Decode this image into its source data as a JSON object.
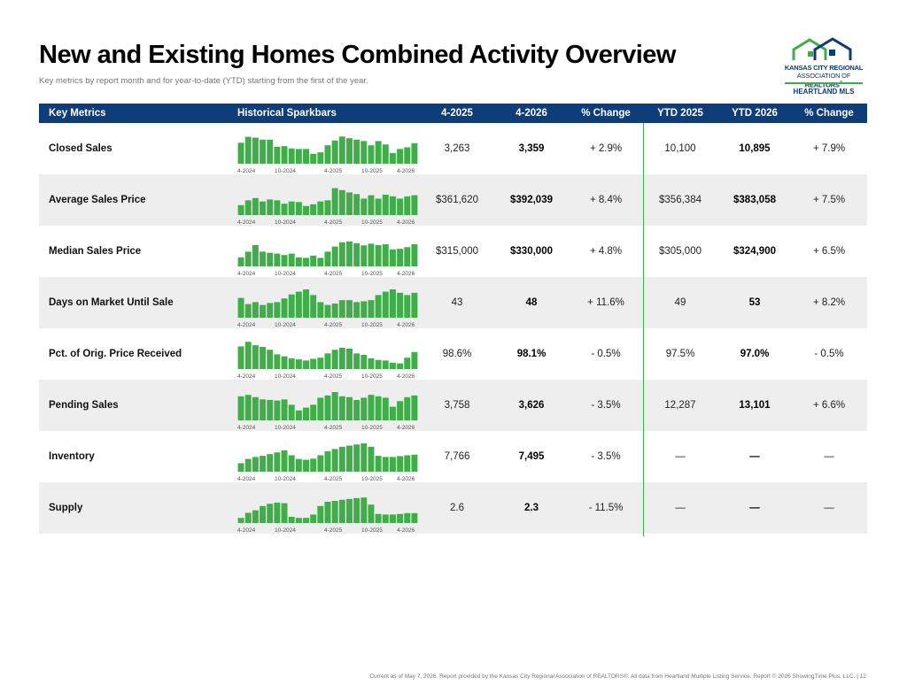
{
  "header": {
    "title": "New and Existing Homes Combined Activity Overview",
    "subtitle": "Key metrics by report month and for year-to-date (YTD) starting from the first of the year."
  },
  "logo": {
    "line1": "KANSAS CITY REGIONAL",
    "line2a": "ASSOCIATION OF ",
    "line2b": "REALTORS",
    "line3": "HEARTLAND MLS"
  },
  "colors": {
    "header_bg": "#0f3d7a",
    "bar_green": "#3fae49",
    "row_shade": "#eeeeee"
  },
  "columns": [
    "Key Metrics",
    "Historical Sparkbars",
    "4-2025",
    "4-2026",
    "% Change",
    "YTD 2025",
    "YTD 2026",
    "% Change"
  ],
  "spark_ticks": [
    "4-2024",
    "10-2024",
    "4-2025",
    "10-2025",
    "4-2026"
  ],
  "rows": [
    {
      "label": "Closed Sales",
      "m1": "3,263",
      "m2": "3,359",
      "chg": "+ 2.9%",
      "y1": "10,100",
      "y2": "10,895",
      "ychg": "+ 7.9%",
      "spark": [
        0.74,
        0.95,
        0.92,
        0.85,
        0.85,
        0.6,
        0.62,
        0.54,
        0.52,
        0.52,
        0.35,
        0.4,
        0.65,
        0.82,
        0.96,
        0.9,
        0.85,
        0.8,
        0.65,
        0.8,
        0.68,
        0.38,
        0.52,
        0.58,
        0.72
      ]
    },
    {
      "label": "Average Sales Price",
      "m1": "$361,620",
      "m2": "$392,039",
      "chg": "+ 8.4%",
      "y1": "$356,384",
      "y2": "$383,058",
      "ychg": "+ 7.5%",
      "spark": [
        0.35,
        0.52,
        0.6,
        0.48,
        0.55,
        0.52,
        0.4,
        0.48,
        0.46,
        0.32,
        0.38,
        0.48,
        0.52,
        0.95,
        0.88,
        0.8,
        0.74,
        0.58,
        0.7,
        0.58,
        0.72,
        0.66,
        0.58,
        0.66,
        0.7
      ]
    },
    {
      "label": "Median Sales Price",
      "m1": "$315,000",
      "m2": "$330,000",
      "chg": "+ 4.8%",
      "y1": "$305,000",
      "y2": "$324,900",
      "ychg": "+ 6.5%",
      "spark": [
        0.32,
        0.52,
        0.75,
        0.52,
        0.48,
        0.45,
        0.4,
        0.45,
        0.32,
        0.3,
        0.38,
        0.3,
        0.52,
        0.7,
        0.85,
        0.88,
        0.82,
        0.74,
        0.8,
        0.75,
        0.78,
        0.6,
        0.62,
        0.68,
        0.78
      ]
    },
    {
      "label": "Days on Market Until Sale",
      "m1": "43",
      "m2": "48",
      "chg": "+ 11.6%",
      "y1": "49",
      "y2": "53",
      "ychg": "+ 8.2%",
      "spark": [
        0.7,
        0.48,
        0.55,
        0.45,
        0.52,
        0.55,
        0.68,
        0.82,
        0.92,
        1.0,
        0.8,
        0.55,
        0.45,
        0.5,
        0.62,
        0.62,
        0.55,
        0.58,
        0.62,
        0.8,
        0.92,
        1.0,
        0.88,
        0.8,
        0.88
      ]
    },
    {
      "label": "Pct. of Orig. Price Received",
      "m1": "98.6%",
      "m2": "98.1%",
      "chg": "- 0.5%",
      "y1": "97.5%",
      "y2": "97.0%",
      "ychg": "- 0.5%",
      "spark": [
        0.8,
        0.96,
        0.84,
        0.78,
        0.68,
        0.52,
        0.45,
        0.38,
        0.34,
        0.3,
        0.36,
        0.4,
        0.55,
        0.68,
        0.75,
        0.72,
        0.55,
        0.5,
        0.38,
        0.32,
        0.3,
        0.22,
        0.2,
        0.4,
        0.6
      ]
    },
    {
      "label": "Pending Sales",
      "m1": "3,758",
      "m2": "3,626",
      "chg": "- 3.5%",
      "y1": "12,287",
      "y2": "13,101",
      "ychg": "+ 6.6%",
      "spark": [
        0.85,
        0.9,
        0.82,
        0.74,
        0.72,
        0.7,
        0.74,
        0.55,
        0.35,
        0.45,
        0.55,
        0.8,
        0.88,
        1.0,
        0.85,
        0.82,
        0.72,
        0.8,
        0.9,
        0.85,
        0.8,
        0.48,
        0.68,
        0.82,
        0.88
      ]
    },
    {
      "label": "Inventory",
      "m1": "7,766",
      "m2": "7,495",
      "chg": "- 3.5%",
      "y1": "—",
      "y2": "—",
      "ychg": "—",
      "spark": [
        0.3,
        0.45,
        0.52,
        0.56,
        0.62,
        0.68,
        0.75,
        0.58,
        0.45,
        0.42,
        0.46,
        0.58,
        0.72,
        0.8,
        0.88,
        0.92,
        0.96,
        1.0,
        0.88,
        0.56,
        0.52,
        0.52,
        0.55,
        0.58,
        0.6
      ]
    },
    {
      "label": "Supply",
      "m1": "2.6",
      "m2": "2.3",
      "chg": "- 11.5%",
      "y1": "—",
      "y2": "—",
      "ychg": "—",
      "spark": [
        0.18,
        0.36,
        0.45,
        0.6,
        0.68,
        0.72,
        0.7,
        0.22,
        0.18,
        0.18,
        0.3,
        0.6,
        0.75,
        0.78,
        0.82,
        0.85,
        0.88,
        0.9,
        0.65,
        0.32,
        0.3,
        0.3,
        0.32,
        0.35,
        0.35
      ]
    }
  ],
  "footer": "Current as of May 7, 2026. Report provided by the Kansas City Regional Association of REALTORS®. All data from Heartland Multiple Listing Service. Report © 2026 ShowingTime Plus, LLC.  |  12"
}
